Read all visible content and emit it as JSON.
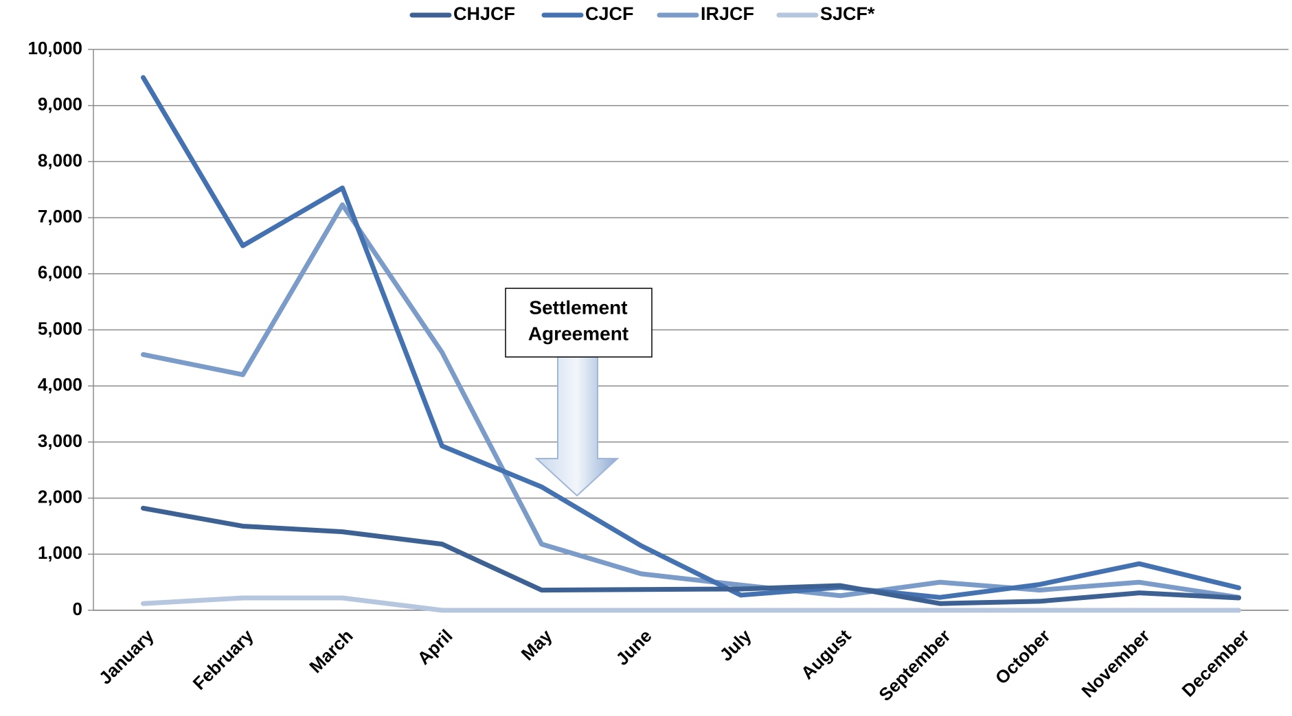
{
  "chart_data": {
    "type": "line",
    "categories": [
      "January",
      "February",
      "March",
      "April",
      "May",
      "June",
      "July",
      "August",
      "September",
      "October",
      "November",
      "December"
    ],
    "series": [
      {
        "name": "CHJCF",
        "color": "#3d6193",
        "values": [
          1820,
          1500,
          1400,
          1180,
          360,
          370,
          380,
          440,
          120,
          160,
          310,
          220
        ]
      },
      {
        "name": "CJCF",
        "color": "#4472b0",
        "values": [
          9500,
          6500,
          7530,
          2930,
          2200,
          1150,
          270,
          410,
          230,
          460,
          830,
          400
        ]
      },
      {
        "name": "IRJCF",
        "color": "#7b9bc8",
        "values": [
          4560,
          4200,
          7230,
          4600,
          1180,
          650,
          450,
          260,
          500,
          360,
          500,
          230
        ]
      },
      {
        "name": "SJCF*",
        "color": "#b5c6de",
        "values": [
          120,
          220,
          220,
          0,
          0,
          0,
          0,
          0,
          0,
          0,
          0,
          0
        ]
      }
    ],
    "ylim": [
      0,
      10000
    ],
    "yticks": [
      0,
      {
        "value": 1000,
        "label": "1,000"
      },
      {
        "value": 2000,
        "label": "2,000"
      },
      {
        "value": 3000,
        "label": "3,000"
      },
      {
        "value": 4000,
        "label": "4,000"
      },
      {
        "value": 5000,
        "label": "5,000"
      },
      {
        "value": 6000,
        "label": "6,000"
      },
      {
        "value": 7000,
        "label": "7,000"
      },
      {
        "value": 8000,
        "label": "8,000"
      },
      {
        "value": 9000,
        "label": "9,000"
      },
      {
        "value": 10000,
        "label": "10,000"
      }
    ],
    "grid": true,
    "legend": "top",
    "annotation_lines": [
      "Settlement",
      "Agreement"
    ]
  }
}
